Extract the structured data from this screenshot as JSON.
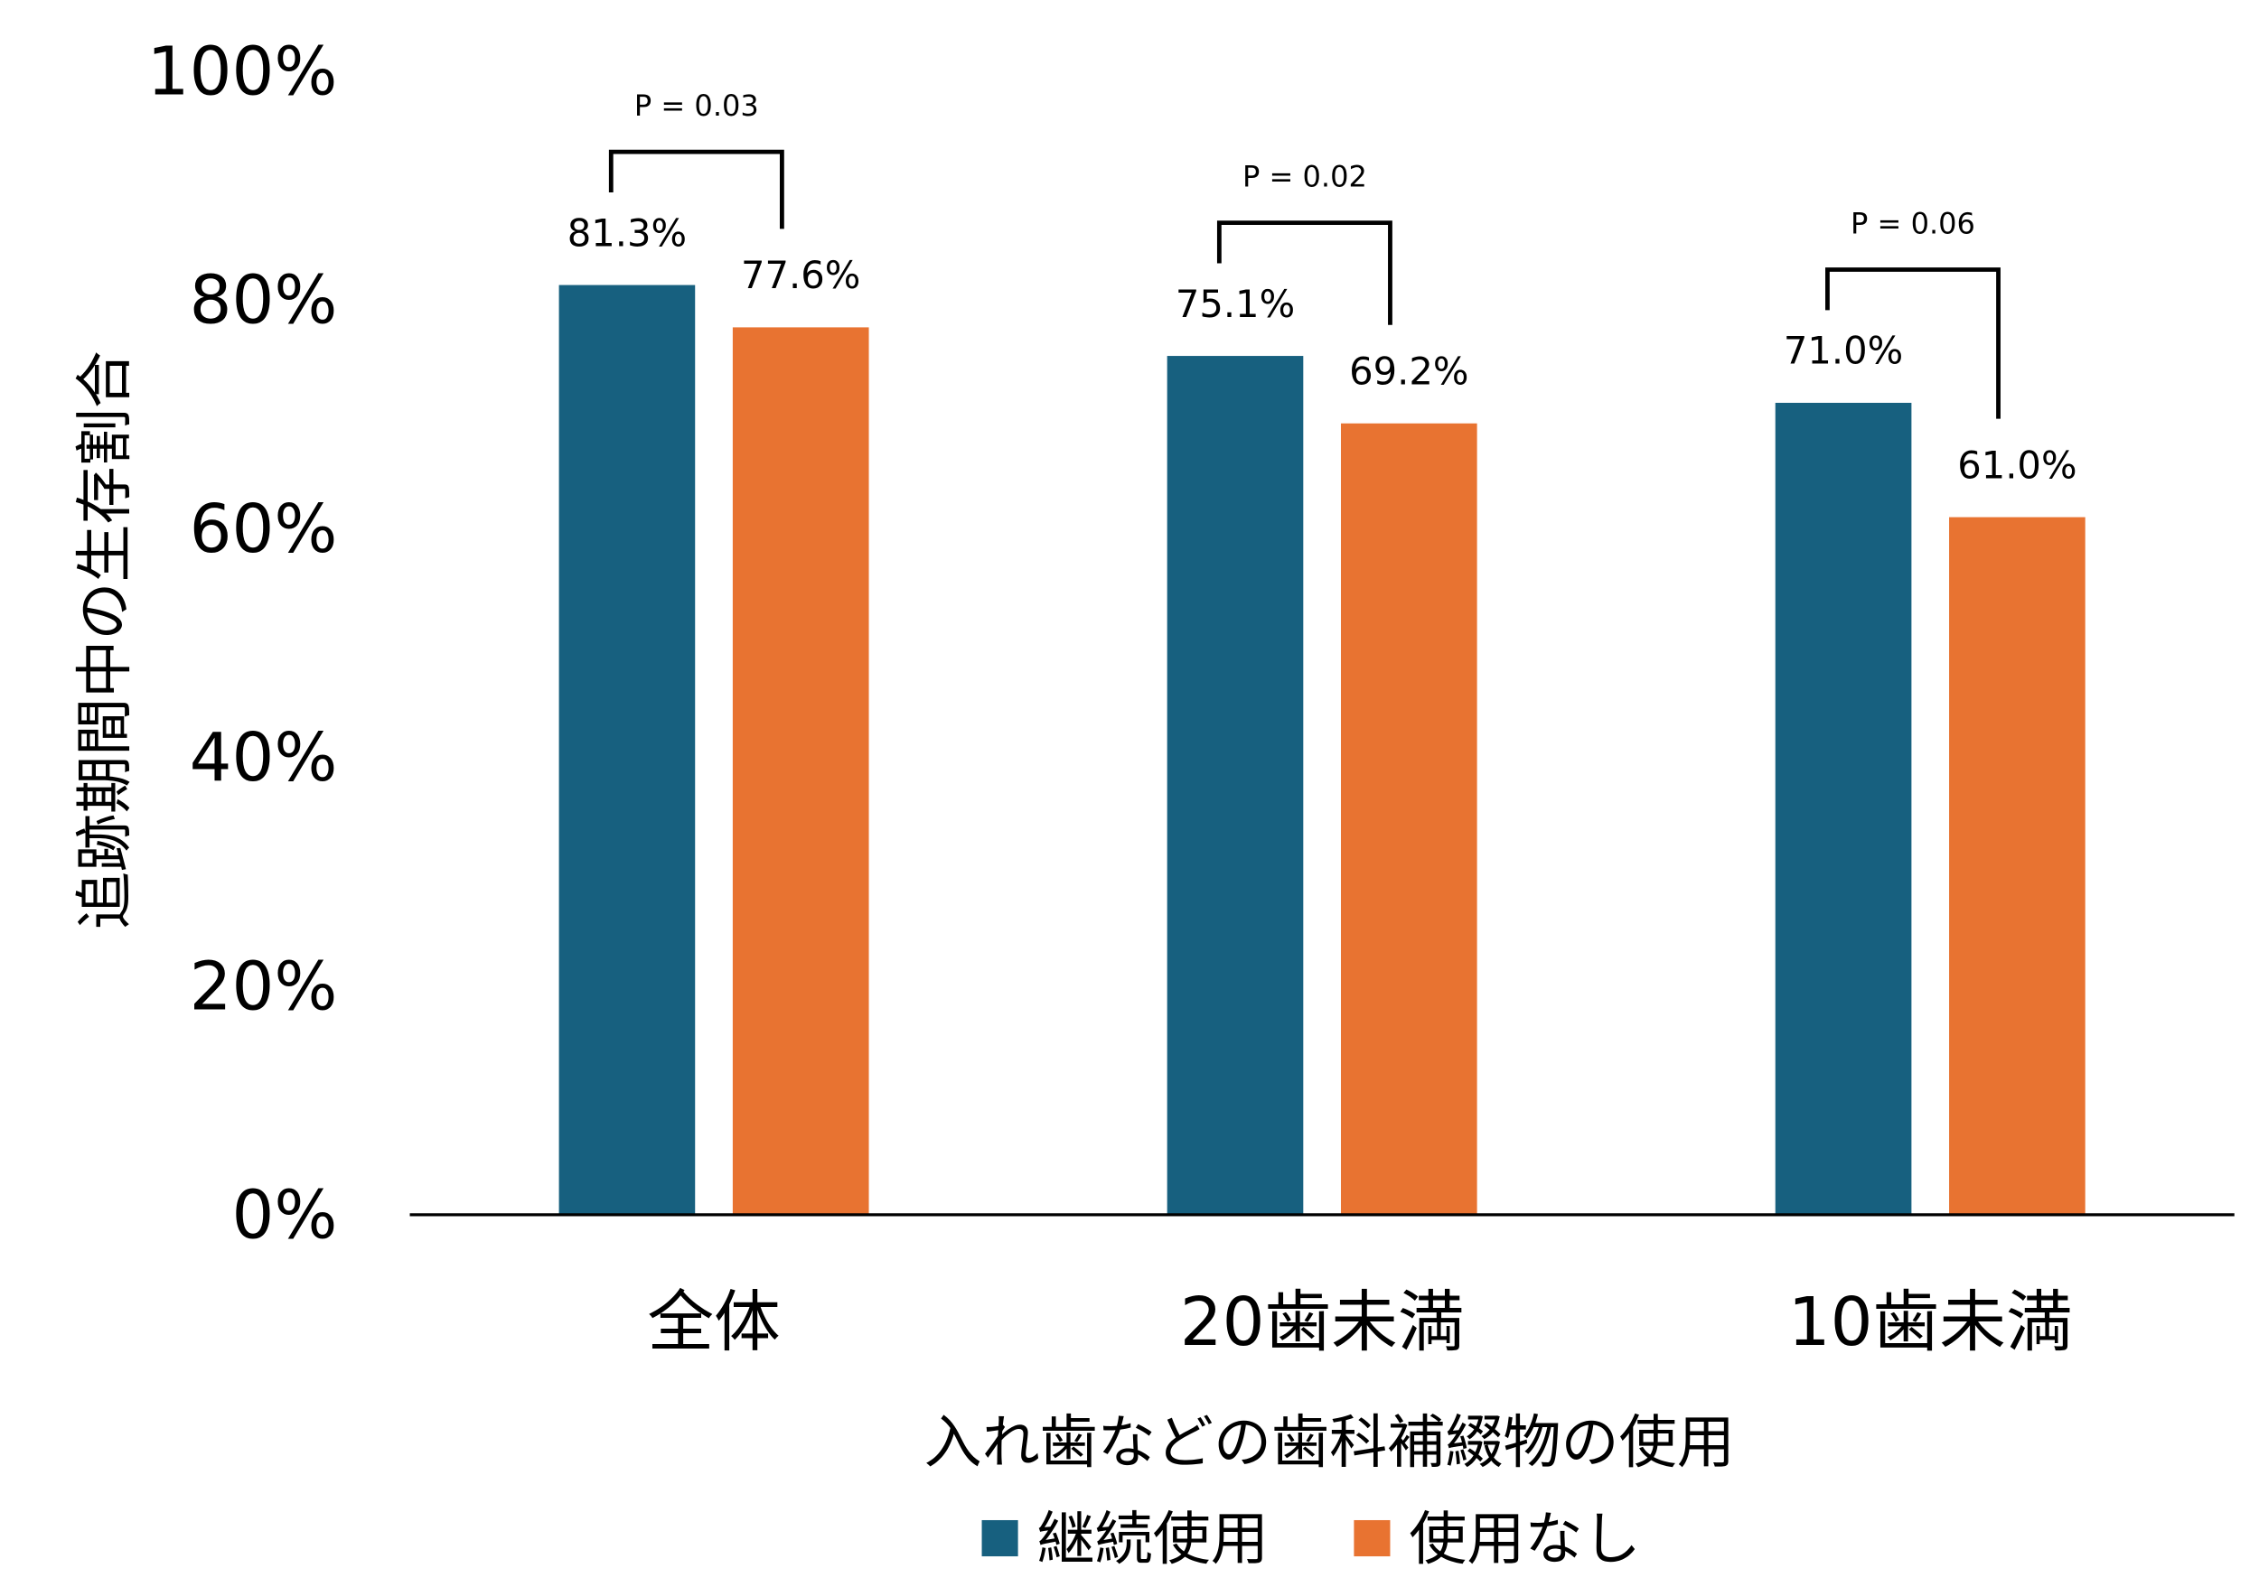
{
  "chart_data": {
    "type": "bar",
    "title": "",
    "xlabel": "入れ歯などの歯科補綴物の使用",
    "ylabel": "追跡期間中の生存割合",
    "ylim": [
      0,
      100
    ],
    "yticks": [
      "0%",
      "20%",
      "40%",
      "60%",
      "80%",
      "100%"
    ],
    "ytick_values": [
      0,
      20,
      40,
      60,
      80,
      100
    ],
    "categories": [
      "全体",
      "20歯未満",
      "10歯未満"
    ],
    "series": [
      {
        "name": "継続使用",
        "color": "#17607f",
        "values": [
          81.3,
          75.1,
          71.0
        ],
        "labels": [
          "81.3%",
          "75.1%",
          "71.0%"
        ]
      },
      {
        "name": "使用なし",
        "color": "#e87331",
        "values": [
          77.6,
          69.2,
          61.0
        ],
        "labels": [
          "77.6%",
          "69.2%",
          "61.0%"
        ]
      }
    ],
    "annotations": [
      "P = 0.03",
      "P = 0.02",
      "P = 0.06"
    ],
    "legend": {
      "placement": "bottom-center"
    },
    "grid": false
  }
}
